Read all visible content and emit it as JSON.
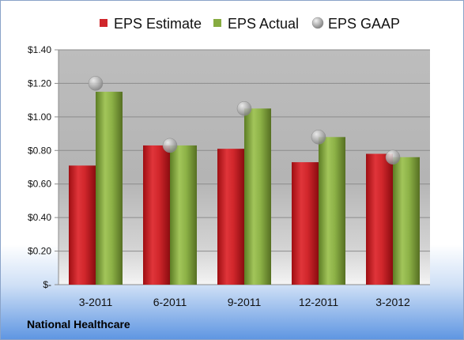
{
  "chart_data": {
    "type": "bar",
    "categories": [
      "3-2011",
      "6-2011",
      "9-2011",
      "12-2011",
      "3-2012"
    ],
    "series": [
      {
        "name": "EPS Estimate",
        "values": [
          0.71,
          0.83,
          0.81,
          0.73,
          0.78
        ],
        "color": "#c0161b",
        "kind": "bar"
      },
      {
        "name": "EPS Actual",
        "values": [
          1.15,
          0.83,
          1.05,
          0.88,
          0.76
        ],
        "color": "#80a33a",
        "kind": "bar"
      },
      {
        "name": "EPS GAAP",
        "values": [
          1.2,
          0.83,
          1.05,
          0.88,
          0.76
        ],
        "color": "#a8a8a8",
        "kind": "marker"
      }
    ],
    "yticks": [
      "$-",
      "$0.20",
      "$0.40",
      "$0.60",
      "$0.80",
      "$1.00",
      "$1.20",
      "$1.40"
    ],
    "ylim": [
      0,
      1.4
    ],
    "grid": true,
    "legend_position": "top"
  },
  "footer": {
    "company": "National Healthcare"
  }
}
